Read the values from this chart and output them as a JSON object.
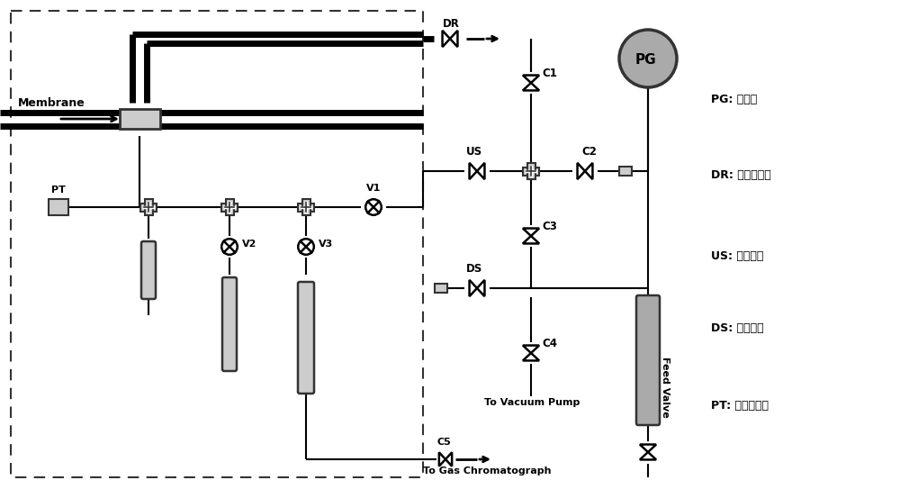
{
  "figure_width": 10.0,
  "figure_height": 5.43,
  "dpi": 100,
  "bg_color": "#ffffff",
  "line_color": "#000000",
  "thick_line_color": "#000000",
  "gray_color": "#aaaaaa",
  "dark_gray": "#333333",
  "light_gray": "#cccccc",
  "legend": [
    "PG: 压力表",
    "DR: 滞留调节阀",
    "US: 上游阀门",
    "DS: 下游阀门",
    "PT: 压力传感器"
  ]
}
